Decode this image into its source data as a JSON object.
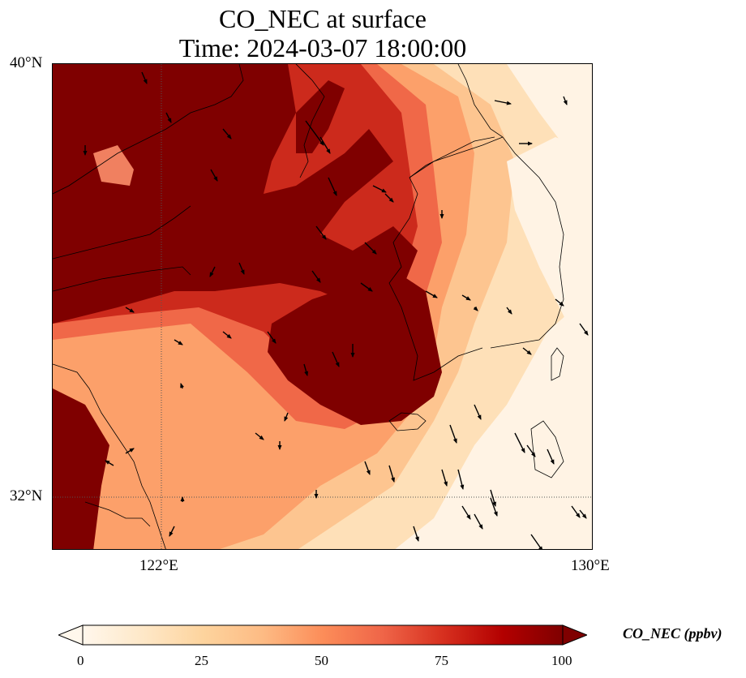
{
  "title": {
    "line1": "CO_NEC at surface",
    "line2": "Time: 2024-03-07 18:00:00"
  },
  "axes": {
    "lat_ticks": [
      "40°N",
      "32°N"
    ],
    "lon_ticks": [
      "122°E",
      "130°E"
    ],
    "lon_range": [
      120,
      130
    ],
    "lat_range": [
      31,
      40
    ],
    "gridlines": "dotted at 122°E and 32°N"
  },
  "colorbar": {
    "label": "CO_NEC (ppbv)",
    "ticks": [
      "0",
      "25",
      "50",
      "75",
      "100"
    ],
    "range": [
      0,
      100
    ],
    "extend": "both",
    "colormap": "OrRd",
    "colors": [
      "#fff7ec",
      "#fee8c8",
      "#fdd49e",
      "#fdbb84",
      "#fc8d59",
      "#ef6548",
      "#d7301f",
      "#b30000",
      "#7f0000"
    ]
  },
  "chart_data": {
    "type": "heatmap",
    "variable": "CO_NEC",
    "units": "ppbv",
    "level": "surface",
    "time": "2024-03-07 18:00:00",
    "x_range_lon": [
      120,
      130
    ],
    "y_range_lat": [
      31,
      40
    ],
    "z_range": [
      0,
      100
    ],
    "features": [
      "coastlines",
      "wind vectors"
    ]
  }
}
